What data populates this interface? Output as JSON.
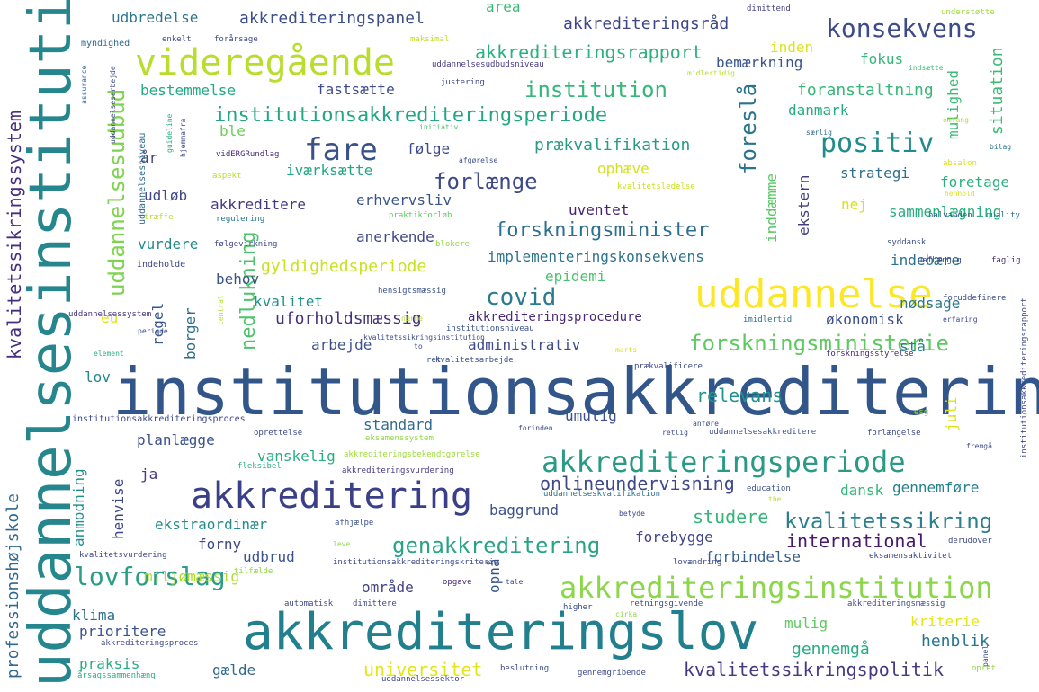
{
  "words": [
    {
      "text": "institutionsakkreditering",
      "color": "#33568a"
    },
    {
      "text": "uddannelsesinstitution",
      "color": "#25868d"
    },
    {
      "text": "akkrediteringslov",
      "color": "#217f8e"
    },
    {
      "text": "akkreditering",
      "color": "#3a3f87"
    },
    {
      "text": "uddannelse",
      "color": "#fde725"
    },
    {
      "text": "videregående",
      "color": "#b8dd2c"
    },
    {
      "text": "akkrediteringsinstitution",
      "color": "#8bd64a"
    },
    {
      "text": "akkrediteringsperiode",
      "color": "#2a9a87"
    },
    {
      "text": "institutionsakkrediteringsperiode",
      "color": "#23a682"
    },
    {
      "text": "fare",
      "color": "#3b5289"
    },
    {
      "text": "positiv",
      "color": "#228b8c"
    },
    {
      "text": "konsekvens",
      "color": "#3d4b8a"
    },
    {
      "text": "covid",
      "color": "#2b7b8e"
    },
    {
      "text": "forskningsminister",
      "color": "#2d6f8e"
    },
    {
      "text": "forskningsministerie",
      "color": "#5ec962"
    },
    {
      "text": "genakkreditering",
      "color": "#2aa286"
    },
    {
      "text": "kvalitetssikring",
      "color": "#2b7f8e"
    },
    {
      "text": "lovforslag",
      "color": "#2a9d84"
    },
    {
      "text": "uddannelsesudbud",
      "color": "#7ed34f"
    },
    {
      "text": "nedlukning",
      "color": "#4ec36b"
    },
    {
      "text": "forlænge",
      "color": "#3e4989"
    },
    {
      "text": "institution",
      "color": "#35b779"
    },
    {
      "text": "akkrediteringsrapport",
      "color": "#2bb07f"
    },
    {
      "text": "onlineundervisning",
      "color": "#3f4889"
    },
    {
      "text": "studere",
      "color": "#34b679"
    },
    {
      "text": "kvalitetssikringspolitik",
      "color": "#443a83"
    },
    {
      "text": "international",
      "color": "#48196b"
    },
    {
      "text": "implementeringskonsekvens",
      "color": "#2c738e"
    },
    {
      "text": "gyldighedsperiode",
      "color": "#cae11f"
    },
    {
      "text": "uforholdsmæssig",
      "color": "#46327e"
    },
    {
      "text": "relevans",
      "color": "#20938c"
    },
    {
      "text": "kvalitetssikringssystem",
      "color": "#46307e"
    },
    {
      "text": "professionshøjskole",
      "color": "#31688e"
    },
    {
      "text": "foreslå",
      "color": "#2b748e"
    },
    {
      "text": "universitet",
      "color": "#e5e419"
    },
    {
      "text": "henblik",
      "color": "#2a768e"
    },
    {
      "text": "gennemgå",
      "color": "#26ad81"
    },
    {
      "text": "akkrediteringspanel",
      "color": "#3c4f8a"
    },
    {
      "text": "udbredelse",
      "color": "#2a788e"
    },
    {
      "text": "area",
      "color": "#3bbb75"
    },
    {
      "text": "akkrediteringsråd",
      "color": "#3f4788"
    },
    {
      "text": "bemærkning",
      "color": "#3a548c"
    },
    {
      "text": "fokus",
      "color": "#35b779"
    },
    {
      "text": "inden",
      "color": "#dde318"
    },
    {
      "text": "mulighed",
      "color": "#3bbb75"
    },
    {
      "text": "situation",
      "color": "#3aba76"
    },
    {
      "text": "bestemmelse",
      "color": "#23a983"
    },
    {
      "text": "fastsætte",
      "color": "#3e4a89"
    },
    {
      "text": "foranstaltning",
      "color": "#35b779"
    },
    {
      "text": "ble",
      "color": "#6ccd5a"
    },
    {
      "text": "danmark",
      "color": "#25ac82"
    },
    {
      "text": "følge",
      "color": "#3e4989"
    },
    {
      "text": "prækvalifikation",
      "color": "#2a9b86"
    },
    {
      "text": "år",
      "color": "#404387"
    },
    {
      "text": "iværksætte",
      "color": "#22a785"
    },
    {
      "text": "ophæve",
      "color": "#d2e21b"
    },
    {
      "text": "strategi",
      "color": "#2d708e"
    },
    {
      "text": "foretage",
      "color": "#2ab07f"
    },
    {
      "text": "inddæmme",
      "color": "#58c765"
    },
    {
      "text": "ekstern",
      "color": "#433d84"
    },
    {
      "text": "udløb",
      "color": "#3f4788"
    },
    {
      "text": "akkreditere",
      "color": "#443a83"
    },
    {
      "text": "erhvervsliv",
      "color": "#3a548c"
    },
    {
      "text": "uventet",
      "color": "#482173"
    },
    {
      "text": "nej",
      "color": "#d8e219"
    },
    {
      "text": "sammenlægning",
      "color": "#29af7f"
    },
    {
      "text": "vurdere",
      "color": "#238a8d"
    },
    {
      "text": "anerkende",
      "color": "#3f4788"
    },
    {
      "text": "behov",
      "color": "#3b528b"
    },
    {
      "text": "epidemi",
      "color": "#4ac16d"
    },
    {
      "text": "indebære",
      "color": "#2c728e"
    },
    {
      "text": "kvalitet",
      "color": "#21918c"
    },
    {
      "text": "nødsage",
      "color": "#2a788e"
    },
    {
      "text": "eu",
      "color": "#dfe318"
    },
    {
      "text": "regel",
      "color": "#38588c"
    },
    {
      "text": "borger",
      "color": "#2e6e8e"
    },
    {
      "text": "akkrediteringsprocedure",
      "color": "#482979"
    },
    {
      "text": "økonomisk",
      "color": "#3c4f8a"
    },
    {
      "text": "arbejde",
      "color": "#3b528b"
    },
    {
      "text": "administrativ",
      "color": "#3e4a89"
    },
    {
      "text": "stå",
      "color": "#297b8e"
    },
    {
      "text": "lov",
      "color": "#24868e"
    },
    {
      "text": "standard",
      "color": "#2f6c8e"
    },
    {
      "text": "umulig",
      "color": "#3e4c8a"
    },
    {
      "text": "juli",
      "color": "#dde318"
    },
    {
      "text": "planlægge",
      "color": "#3b518b"
    },
    {
      "text": "vanskelig",
      "color": "#27ad81"
    },
    {
      "text": "ja",
      "color": "#453781"
    },
    {
      "text": "dansk",
      "color": "#35b779"
    },
    {
      "text": "gennemføre",
      "color": "#26818e"
    },
    {
      "text": "anmodning",
      "color": "#21908d"
    },
    {
      "text": "henvise",
      "color": "#3f4788"
    },
    {
      "text": "ekstraordinær",
      "color": "#228c8d"
    },
    {
      "text": "baggrund",
      "color": "#3b528b"
    },
    {
      "text": "forny",
      "color": "#3f4788"
    },
    {
      "text": "forebygge",
      "color": "#414487"
    },
    {
      "text": "udbrud",
      "color": "#3b528b"
    },
    {
      "text": "forbindelse",
      "color": "#355f8d"
    },
    {
      "text": "område",
      "color": "#414487"
    },
    {
      "text": "miljømæssig",
      "color": "#addc30"
    },
    {
      "text": "opnå",
      "color": "#38588c"
    },
    {
      "text": "klima",
      "color": "#2d708e"
    },
    {
      "text": "prioritere",
      "color": "#3b528b"
    },
    {
      "text": "mulig",
      "color": "#5ec962"
    },
    {
      "text": "kriterie",
      "color": "#e5e419"
    },
    {
      "text": "praksis",
      "color": "#27ad81"
    },
    {
      "text": "gælde",
      "color": "#31688e"
    },
    {
      "text": "myndighed",
      "color": "#31688e"
    },
    {
      "text": "enkelt",
      "color": "#3e4989"
    },
    {
      "text": "forårsage",
      "color": "#3e4989"
    },
    {
      "text": "maksimal",
      "color": "#bddf26"
    },
    {
      "text": "dimittend",
      "color": "#433e85"
    },
    {
      "text": "understøtte",
      "color": "#9fda3a"
    },
    {
      "text": "uddannelsesudbudsniveau",
      "color": "#443983"
    },
    {
      "text": "assurance",
      "color": "#2f6c8e"
    },
    {
      "text": "uddannelsesniveau",
      "color": "#2f6b8e"
    },
    {
      "text": "uddannelsesarbejde",
      "color": "#3e4989"
    },
    {
      "text": "guideline",
      "color": "#29af7f"
    },
    {
      "text": "hjemmafra",
      "color": "#3f4788"
    },
    {
      "text": "justering",
      "color": "#3e4989"
    },
    {
      "text": "midlertidig",
      "color": "#b5de2b"
    },
    {
      "text": "indsætte",
      "color": "#3bbb75"
    },
    {
      "text": "initiativ",
      "color": "#4ac16d"
    },
    {
      "text": "vidERGRundlag",
      "color": "#482878"
    },
    {
      "text": "afgørelse",
      "color": "#3b528b"
    },
    {
      "text": "aspekt",
      "color": "#b5de2b"
    },
    {
      "text": "kvalitetsledelse",
      "color": "#c8e020"
    },
    {
      "text": "træffe",
      "color": "#b5de2b"
    },
    {
      "text": "regulering",
      "color": "#2a788e"
    },
    {
      "text": "praktikforløb",
      "color": "#5ec962"
    },
    {
      "text": "følgevirkning",
      "color": "#3e4989"
    },
    {
      "text": "blokere",
      "color": "#8fd744"
    },
    {
      "text": "indeholde",
      "color": "#404387"
    },
    {
      "text": "hensigtsmæssig",
      "color": "#3b528b"
    },
    {
      "text": "uddannelsessystem",
      "color": "#46327e"
    },
    {
      "text": "institutionsakkrediteringsproces",
      "color": "#3e4989"
    },
    {
      "text": "akkrediteringsbekendtgørelse",
      "color": "#9fda3a"
    },
    {
      "text": "akkrediteringsvurdering",
      "color": "#443983"
    },
    {
      "text": "uddannelseskvalifikation",
      "color": "#2c728e"
    },
    {
      "text": "særlig",
      "color": "#2f6c8e"
    },
    {
      "text": "omfang",
      "color": "#b5de2b"
    },
    {
      "text": "bilag",
      "color": "#2c728e"
    },
    {
      "text": "absalon",
      "color": "#d8e219"
    },
    {
      "text": "henhold",
      "color": "#d8e219"
    },
    {
      "text": "halvanden",
      "color": "#3b528b"
    },
    {
      "text": "quality",
      "color": "#2f6c8e"
    },
    {
      "text": "syddansk",
      "color": "#3b528b"
    },
    {
      "text": "uafhængig",
      "color": "#3e4989"
    },
    {
      "text": "faglig",
      "color": "#482878"
    },
    {
      "text": "foruddefinere",
      "color": "#3e4989"
    },
    {
      "text": "erfaring",
      "color": "#3e4989"
    },
    {
      "text": "imidlertid",
      "color": "#2d708e"
    },
    {
      "text": "institutionsniveau",
      "color": "#3b528b"
    },
    {
      "text": "periode",
      "color": "#3e4989"
    },
    {
      "text": "central",
      "color": "#b5de2b"
    },
    {
      "text": "element",
      "color": "#29af7f"
    },
    {
      "text": "marts",
      "color": "#d8e219"
    },
    {
      "text": "forskningsstyrelse",
      "color": "#482878"
    },
    {
      "text": "prækvalificere",
      "color": "#3e4989"
    },
    {
      "text": "kvalitetsarbejde",
      "color": "#3b528b"
    },
    {
      "text": "ret",
      "color": "#3e4989"
    },
    {
      "text": "forinden",
      "color": "#3e4989"
    },
    {
      "text": "retlig",
      "color": "#3e4989"
    },
    {
      "text": "uddannelsesakkreditere",
      "color": "#3b528b"
    },
    {
      "text": "anføre",
      "color": "#3e4989"
    },
    {
      "text": "forlængelse",
      "color": "#3e4989"
    },
    {
      "text": "esg",
      "color": "#8fd744"
    },
    {
      "text": "fremgå",
      "color": "#3e4989"
    },
    {
      "text": "institutionsakkrediteringsrapport",
      "color": "#3e4989"
    },
    {
      "text": "kvalitetssikringsinstitution",
      "color": "#3e4989"
    },
    {
      "text": "oprettelse",
      "color": "#3e4989"
    },
    {
      "text": "eksamenssystem",
      "color": "#8fd744"
    },
    {
      "text": "to",
      "color": "#3e4989"
    },
    {
      "text": "nærme",
      "color": "#b5de2b"
    },
    {
      "text": "fleksibel",
      "color": "#29af7f"
    },
    {
      "text": "education",
      "color": "#3b528b"
    },
    {
      "text": "the",
      "color": "#b5de2b"
    },
    {
      "text": "afhjælpe",
      "color": "#3b528b"
    },
    {
      "text": "betyde",
      "color": "#3e4989"
    },
    {
      "text": "leve",
      "color": "#8fd744"
    },
    {
      "text": "kvalitetsvurdering",
      "color": "#3e4989"
    },
    {
      "text": "tilfælde",
      "color": "#8fd744"
    },
    {
      "text": "institutionsakkrediteringskriterie",
      "color": "#3e4989"
    },
    {
      "text": "lovændring",
      "color": "#3e4989"
    },
    {
      "text": "derudover",
      "color": "#3e4989"
    },
    {
      "text": "eksamensaktivitet",
      "color": "#3e4989"
    },
    {
      "text": "opgave",
      "color": "#482878"
    },
    {
      "text": "tale",
      "color": "#3e4989"
    },
    {
      "text": "automatisk",
      "color": "#3e4989"
    },
    {
      "text": "dimittere",
      "color": "#3e4989"
    },
    {
      "text": "higher",
      "color": "#3e4989"
    },
    {
      "text": "cirka",
      "color": "#8fd744"
    },
    {
      "text": "retningsgivende",
      "color": "#3e4989"
    },
    {
      "text": "akkrediteringsmæssig",
      "color": "#3e4989"
    },
    {
      "text": "akkrediteringsproces",
      "color": "#3e4989"
    },
    {
      "text": "panel",
      "color": "#3e4989"
    },
    {
      "text": "årsagssammenhæng",
      "color": "#29af7f"
    },
    {
      "text": "beslutning",
      "color": "#3e4989"
    },
    {
      "text": "gennemgribende",
      "color": "#3e4989"
    },
    {
      "text": "opret",
      "color": "#8fd744"
    },
    {
      "text": "uddannelsessektor",
      "color": "#3e4989"
    }
  ]
}
